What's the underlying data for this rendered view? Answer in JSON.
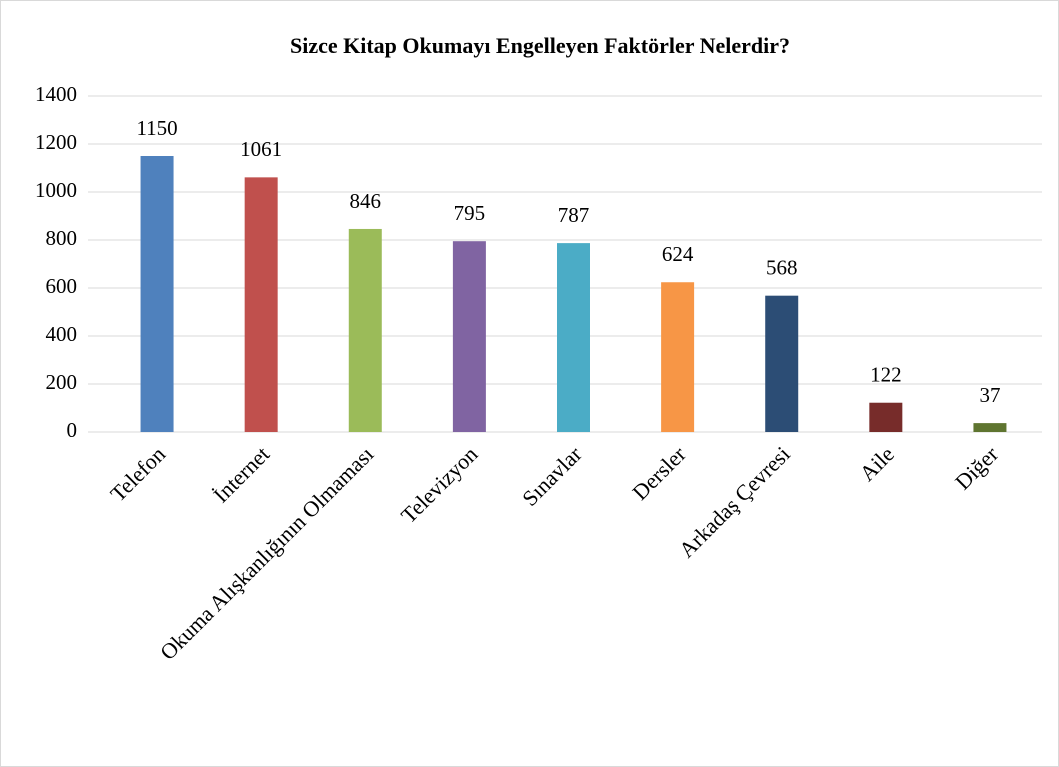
{
  "chart_data": {
    "type": "bar",
    "title": "Sizce Kitap Okumayı Engelleyen Faktörler Nelerdir?",
    "categories": [
      "Telefon",
      "İnternet",
      "Okuma Alışkanlığının Olmaması",
      "Televizyon",
      "Sınavlar",
      "Dersler",
      "Arkadaş Çevresi",
      "Aile",
      "Diğer"
    ],
    "values": [
      1150,
      1061,
      846,
      795,
      787,
      624,
      568,
      122,
      37
    ],
    "colors": [
      "#4f81bd",
      "#c0504d",
      "#9bbb59",
      "#8064a2",
      "#4bacc6",
      "#f79646",
      "#2c4d75",
      "#772c2a",
      "#5f7530"
    ],
    "ylim": [
      0,
      1400
    ],
    "yticks": [
      0,
      200,
      400,
      600,
      800,
      1000,
      1200,
      1400
    ],
    "grid": true
  }
}
